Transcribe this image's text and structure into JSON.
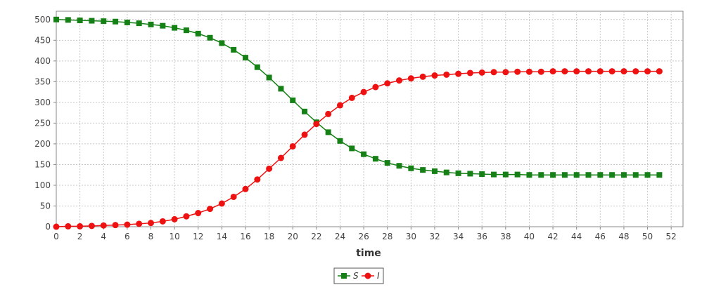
{
  "chart_data": {
    "type": "line",
    "title": "",
    "xlabel": "time",
    "ylabel": "",
    "xlim": [
      0,
      53
    ],
    "ylim": [
      0,
      520
    ],
    "xticks": [
      0,
      2,
      4,
      6,
      8,
      10,
      12,
      14,
      16,
      18,
      20,
      22,
      24,
      26,
      28,
      30,
      32,
      34,
      36,
      38,
      40,
      42,
      44,
      46,
      48,
      50,
      52
    ],
    "yticks": [
      0,
      50,
      100,
      150,
      200,
      250,
      300,
      350,
      400,
      450,
      500
    ],
    "grid": true,
    "legend_position": "bottom-center",
    "x": [
      0,
      1,
      2,
      3,
      4,
      5,
      6,
      7,
      8,
      9,
      10,
      11,
      12,
      13,
      14,
      15,
      16,
      17,
      18,
      19,
      20,
      21,
      22,
      23,
      24,
      25,
      26,
      27,
      28,
      29,
      30,
      31,
      32,
      33,
      34,
      35,
      36,
      37,
      38,
      39,
      40,
      41,
      42,
      43,
      44,
      45,
      46,
      47,
      48,
      49,
      50,
      51
    ],
    "series": [
      {
        "name": "S",
        "color": "#158015",
        "marker": "square",
        "values": [
          500,
          499,
          498,
          497,
          496,
          495,
          493,
          491,
          488,
          485,
          480,
          474,
          466,
          456,
          443,
          427,
          408,
          385,
          360,
          333,
          305,
          278,
          252,
          228,
          207,
          189,
          175,
          164,
          154,
          147,
          141,
          137,
          134,
          131,
          129,
          128,
          127,
          126,
          126,
          126,
          125,
          125,
          125,
          125,
          125,
          125,
          125,
          125,
          125,
          125,
          125,
          125
        ]
      },
      {
        "name": "I",
        "color": "#ee1111",
        "marker": "circle",
        "values": [
          0,
          1,
          1,
          2,
          3,
          4,
          5,
          7,
          9,
          13,
          18,
          25,
          33,
          43,
          56,
          72,
          91,
          114,
          140,
          166,
          194,
          222,
          248,
          272,
          293,
          311,
          325,
          337,
          346,
          353,
          358,
          362,
          365,
          367,
          369,
          371,
          372,
          373,
          373,
          374,
          374,
          374,
          375,
          375,
          375,
          375,
          375,
          375,
          375,
          375,
          375,
          375
        ]
      }
    ]
  }
}
